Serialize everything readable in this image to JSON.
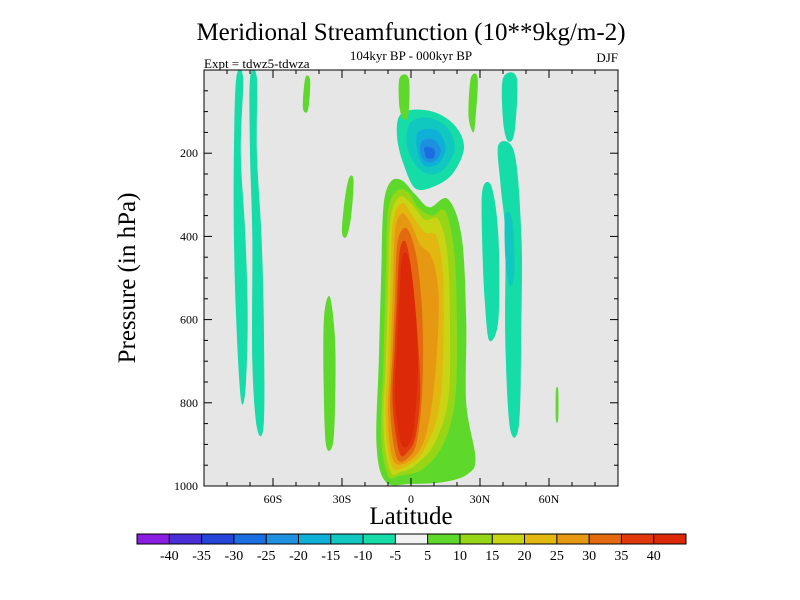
{
  "chart_data": {
    "type": "contour",
    "title": "Meridional Streamfunction (10**9kg/m-2)",
    "subtitle": "104kyr BP - 000kyr BP",
    "left_note": "Expt = tdwz5-tdwza",
    "right_note": "DJF",
    "xlabel": "Latitude",
    "ylabel": "Pressure (in hPa)",
    "xlim": [
      -90,
      90
    ],
    "ylim": [
      1000,
      0
    ],
    "xticks": [
      {
        "value": -60,
        "label": "60S"
      },
      {
        "value": -30,
        "label": "30S"
      },
      {
        "value": 0,
        "label": "0"
      },
      {
        "value": 30,
        "label": "30N"
      },
      {
        "value": 60,
        "label": "60N"
      }
    ],
    "yticks": [
      {
        "value": 200,
        "label": "200"
      },
      {
        "value": 400,
        "label": "400"
      },
      {
        "value": 600,
        "label": "600"
      },
      {
        "value": 800,
        "label": "800"
      },
      {
        "value": 1000,
        "label": "1000"
      }
    ],
    "plot_background": "#e6e6e6",
    "colorbar": {
      "labels": [
        "-40",
        "-35",
        "-30",
        "-25",
        "-20",
        "-15",
        "-10",
        "-5",
        "5",
        "10",
        "15",
        "20",
        "25",
        "30",
        "35",
        "40"
      ],
      "colors": [
        "#8a1ee0",
        "#4a2fd6",
        "#2545d8",
        "#1a6ee0",
        "#1e90e0",
        "#0eb0d8",
        "#10c8c0",
        "#16dca8",
        "#f2f2f2",
        "#5ed82a",
        "#96d616",
        "#c8d414",
        "#e2b810",
        "#e69812",
        "#e46a10",
        "#e03a0c",
        "#dc2a08"
      ]
    },
    "contour_regions": [
      {
        "name": "central-positive-cell",
        "level": 5,
        "points": [
          [
            -11,
            990
          ],
          [
            -15,
            900
          ],
          [
            -14,
            700
          ],
          [
            -13,
            500
          ],
          [
            -12,
            330
          ],
          [
            -9,
            270
          ],
          [
            -4,
            265
          ],
          [
            2,
            300
          ],
          [
            8,
            330
          ],
          [
            16,
            310
          ],
          [
            22,
            400
          ],
          [
            24,
            600
          ],
          [
            24,
            800
          ],
          [
            28,
            930
          ],
          [
            25,
            970
          ],
          [
            15,
            990
          ],
          [
            0,
            995
          ]
        ]
      },
      {
        "name": "central-positive-cell",
        "level": 10,
        "points": [
          [
            -10,
            975
          ],
          [
            -13,
            880
          ],
          [
            -12,
            700
          ],
          [
            -11,
            500
          ],
          [
            -10,
            340
          ],
          [
            -6,
            290
          ],
          [
            -1,
            295
          ],
          [
            3,
            330
          ],
          [
            9,
            350
          ],
          [
            15,
            340
          ],
          [
            19,
            450
          ],
          [
            20,
            650
          ],
          [
            19,
            800
          ],
          [
            14,
            900
          ],
          [
            5,
            960
          ],
          [
            -5,
            975
          ]
        ]
      },
      {
        "name": "central-positive-cell",
        "level": 15,
        "points": [
          [
            -9,
            965
          ],
          [
            -12,
            860
          ],
          [
            -11,
            700
          ],
          [
            -10,
            520
          ],
          [
            -9,
            360
          ],
          [
            -5,
            305
          ],
          [
            0,
            320
          ],
          [
            6,
            360
          ],
          [
            12,
            360
          ],
          [
            16,
            450
          ],
          [
            17,
            650
          ],
          [
            16,
            800
          ],
          [
            10,
            900
          ],
          [
            2,
            950
          ],
          [
            -4,
            965
          ]
        ]
      },
      {
        "name": "central-positive-cell",
        "level": 20,
        "points": [
          [
            -8,
            955
          ],
          [
            -11,
            850
          ],
          [
            -10,
            700
          ],
          [
            -9,
            540
          ],
          [
            -8,
            370
          ],
          [
            -4,
            320
          ],
          [
            0,
            345
          ],
          [
            6,
            390
          ],
          [
            11,
            400
          ],
          [
            14,
            500
          ],
          [
            14,
            680
          ],
          [
            12,
            820
          ],
          [
            6,
            910
          ],
          [
            0,
            945
          ]
        ]
      },
      {
        "name": "central-positive-cell",
        "level": 25,
        "points": [
          [
            -7,
            945
          ],
          [
            -10,
            840
          ],
          [
            -9,
            700
          ],
          [
            -8,
            550
          ],
          [
            -7,
            390
          ],
          [
            -4,
            345
          ],
          [
            0,
            370
          ],
          [
            4,
            420
          ],
          [
            9,
            450
          ],
          [
            12,
            540
          ],
          [
            11,
            700
          ],
          [
            8,
            840
          ],
          [
            3,
            920
          ]
        ]
      },
      {
        "name": "central-positive-cell",
        "level": 30,
        "points": [
          [
            -6,
            935
          ],
          [
            -9,
            820
          ],
          [
            -8,
            680
          ],
          [
            -7,
            550
          ],
          [
            -6,
            420
          ],
          [
            -3,
            380
          ],
          [
            0,
            400
          ],
          [
            3,
            470
          ],
          [
            5,
            600
          ],
          [
            5,
            760
          ],
          [
            3,
            880
          ],
          [
            0,
            925
          ]
        ]
      },
      {
        "name": "central-positive-cell",
        "level": 35,
        "points": [
          [
            -5,
            920
          ],
          [
            -8,
            800
          ],
          [
            -7,
            660
          ],
          [
            -6,
            540
          ],
          [
            -5,
            440
          ],
          [
            -3,
            410
          ],
          [
            -1,
            440
          ],
          [
            1,
            520
          ],
          [
            3,
            650
          ],
          [
            4,
            780
          ],
          [
            2,
            880
          ],
          [
            -1,
            915
          ]
        ]
      },
      {
        "name": "central-positive-cell",
        "level": 40,
        "points": [
          [
            -4,
            900
          ],
          [
            -7,
            790
          ],
          [
            -6,
            650
          ],
          [
            -5,
            540
          ],
          [
            -4,
            455
          ],
          [
            -2,
            440
          ],
          [
            0,
            480
          ],
          [
            2,
            580
          ],
          [
            3,
            700
          ],
          [
            2,
            820
          ],
          [
            0,
            890
          ]
        ]
      },
      {
        "name": "upper-negative-cell",
        "level": -5,
        "points": [
          [
            -5,
            110
          ],
          [
            2,
            95
          ],
          [
            12,
            105
          ],
          [
            20,
            140
          ],
          [
            23,
            190
          ],
          [
            18,
            250
          ],
          [
            10,
            280
          ],
          [
            2,
            285
          ],
          [
            -3,
            230
          ],
          [
            -6,
            165
          ]
        ]
      },
      {
        "name": "upper-negative-cell",
        "level": -10,
        "points": [
          [
            0,
            125
          ],
          [
            8,
            115
          ],
          [
            16,
            140
          ],
          [
            19,
            190
          ],
          [
            14,
            240
          ],
          [
            7,
            250
          ],
          [
            1,
            220
          ],
          [
            -2,
            170
          ]
        ]
      },
      {
        "name": "upper-negative-cell",
        "level": -15,
        "points": [
          [
            3,
            150
          ],
          [
            11,
            145
          ],
          [
            15,
            185
          ],
          [
            12,
            225
          ],
          [
            6,
            230
          ],
          [
            3,
            200
          ]
        ]
      },
      {
        "name": "upper-negative-cell",
        "level": -20,
        "points": [
          [
            5,
            170
          ],
          [
            10,
            168
          ],
          [
            13,
            195
          ],
          [
            10,
            220
          ],
          [
            6,
            218
          ],
          [
            4,
            195
          ]
        ]
      },
      {
        "name": "upper-negative-cell",
        "level": -25,
        "points": [
          [
            6,
            185
          ],
          [
            10,
            190
          ],
          [
            10,
            210
          ],
          [
            7,
            212
          ],
          [
            6,
            200
          ]
        ]
      },
      {
        "name": "southern-negative-band",
        "level": -5,
        "points": [
          [
            -76,
            20
          ],
          [
            -73,
            20
          ],
          [
            -74,
            200
          ],
          [
            -72,
            400
          ],
          [
            -71,
            600
          ],
          [
            -72,
            770
          ],
          [
            -74,
            790
          ],
          [
            -76,
            600
          ],
          [
            -77,
            400
          ],
          [
            -77,
            200
          ]
        ]
      },
      {
        "name": "southern-negative-band",
        "level": -5,
        "points": [
          [
            -70,
            20
          ],
          [
            -67,
            20
          ],
          [
            -67,
            200
          ],
          [
            -65,
            400
          ],
          [
            -64,
            600
          ],
          [
            -64,
            850
          ],
          [
            -67,
            860
          ],
          [
            -69,
            700
          ],
          [
            -69,
            400
          ],
          [
            -70,
            200
          ]
        ]
      },
      {
        "name": "southern-positive-band",
        "level": 5,
        "points": [
          [
            -46,
            20
          ],
          [
            -44,
            20
          ],
          [
            -44,
            60
          ],
          [
            -45,
            100
          ],
          [
            -47,
            90
          ]
        ]
      },
      {
        "name": "southern-positive-band",
        "level": 5,
        "points": [
          [
            -27,
            260
          ],
          [
            -25,
            265
          ],
          [
            -26,
            350
          ],
          [
            -28,
            400
          ],
          [
            -30,
            390
          ],
          [
            -29,
            320
          ]
        ]
      },
      {
        "name": "southern-positive-band",
        "level": 5,
        "points": [
          [
            -37,
            560
          ],
          [
            -35,
            550
          ],
          [
            -33,
            650
          ],
          [
            -33,
            800
          ],
          [
            -34,
            900
          ],
          [
            -37,
            900
          ],
          [
            -38,
            750
          ],
          [
            -38,
            620
          ]
        ]
      },
      {
        "name": "tropical-positive-band",
        "level": 5,
        "points": [
          [
            -5,
            20
          ],
          [
            -1,
            20
          ],
          [
            -1,
            100
          ],
          [
            -3,
            120
          ],
          [
            -5,
            90
          ]
        ]
      },
      {
        "name": "northern-positive-band",
        "level": 5,
        "points": [
          [
            26,
            20
          ],
          [
            29,
            20
          ],
          [
            28,
            120
          ],
          [
            27,
            150
          ],
          [
            25,
            110
          ]
        ]
      },
      {
        "name": "northern-negative-band",
        "level": -5,
        "points": [
          [
            40,
            20
          ],
          [
            46,
            20
          ],
          [
            45,
            150
          ],
          [
            42,
            170
          ],
          [
            40,
            120
          ]
        ]
      },
      {
        "name": "northern-negative-band",
        "level": -5,
        "points": [
          [
            31,
            290
          ],
          [
            35,
            280
          ],
          [
            38,
            400
          ],
          [
            38,
            600
          ],
          [
            34,
            650
          ],
          [
            32,
            550
          ],
          [
            31,
            420
          ]
        ]
      },
      {
        "name": "northern-negative-band",
        "level": -5,
        "points": [
          [
            38,
            180
          ],
          [
            45,
            200
          ],
          [
            48,
            400
          ],
          [
            48,
            600
          ],
          [
            47,
            850
          ],
          [
            43,
            860
          ],
          [
            41,
            650
          ],
          [
            41,
            400
          ],
          [
            39,
            280
          ]
        ]
      },
      {
        "name": "northern-negative-band",
        "level": -10,
        "points": [
          [
            41,
            350
          ],
          [
            44,
            360
          ],
          [
            45,
            480
          ],
          [
            43,
            520
          ],
          [
            41,
            450
          ]
        ]
      },
      {
        "name": "northern-positive-band",
        "level": 5,
        "points": [
          [
            63,
            770
          ],
          [
            64,
            770
          ],
          [
            64,
            840
          ],
          [
            63,
            840
          ]
        ]
      }
    ]
  }
}
